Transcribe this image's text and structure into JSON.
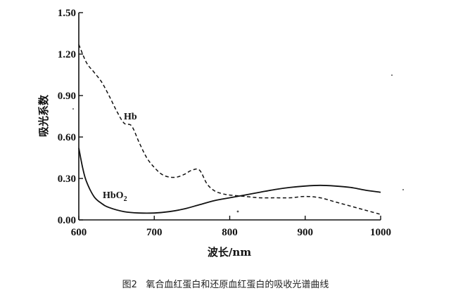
{
  "chart_data": {
    "type": "line",
    "xlabel": "波长/nm",
    "ylabel": "吸光系数",
    "xlim": [
      600,
      1000
    ],
    "ylim": [
      0,
      1.5
    ],
    "x_ticks": [
      "600",
      "700",
      "800",
      "900",
      "1000"
    ],
    "y_ticks": [
      "0.00",
      "0.30",
      "0.60",
      "0.90",
      "1.20",
      "1.50"
    ],
    "grid": false,
    "legend": "none",
    "series": [
      {
        "name": "Hb",
        "label": "Hb",
        "style": "dashed",
        "color": "#111111",
        "x": [
          600,
          610,
          620,
          630,
          640,
          650,
          660,
          670,
          680,
          690,
          700,
          710,
          720,
          730,
          740,
          750,
          760,
          770,
          780,
          790,
          800,
          820,
          840,
          860,
          880,
          900,
          920,
          940,
          960,
          980,
          1000
        ],
        "y": [
          1.27,
          1.14,
          1.07,
          1.0,
          0.9,
          0.79,
          0.7,
          0.68,
          0.56,
          0.45,
          0.38,
          0.33,
          0.31,
          0.31,
          0.33,
          0.36,
          0.36,
          0.26,
          0.21,
          0.19,
          0.18,
          0.17,
          0.16,
          0.16,
          0.16,
          0.17,
          0.16,
          0.13,
          0.1,
          0.07,
          0.04
        ]
      },
      {
        "name": "HbO2",
        "label_base": "HbO",
        "label_sub": "2",
        "style": "solid",
        "color": "#111111",
        "x": [
          600,
          605,
          610,
          620,
          630,
          640,
          660,
          680,
          700,
          720,
          740,
          760,
          780,
          800,
          820,
          840,
          860,
          880,
          900,
          920,
          940,
          960,
          980,
          1000
        ],
        "y": [
          0.52,
          0.38,
          0.28,
          0.17,
          0.12,
          0.09,
          0.06,
          0.05,
          0.05,
          0.06,
          0.08,
          0.11,
          0.14,
          0.16,
          0.18,
          0.2,
          0.22,
          0.235,
          0.245,
          0.25,
          0.245,
          0.235,
          0.215,
          0.2
        ]
      }
    ]
  },
  "caption": "图2   氧合血红蛋白和还原血红蛋白的吸收光谱曲线"
}
